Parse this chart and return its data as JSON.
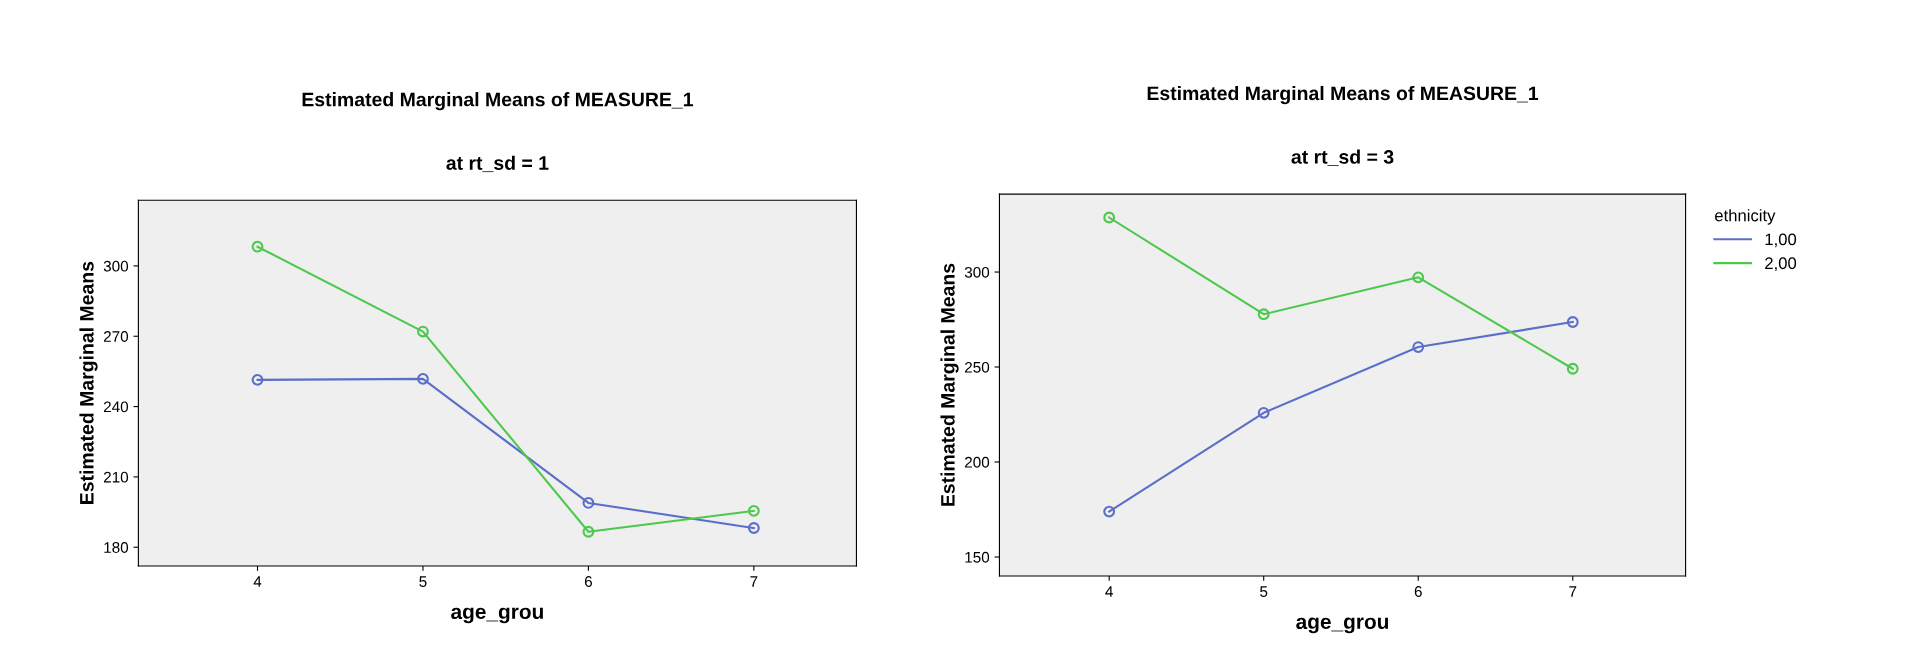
{
  "chart_data": [
    {
      "type": "line",
      "title": "Estimated Marginal Means of MEASURE_1",
      "subtitle": "at rt_sd = 1",
      "xlabel": "age_grou",
      "ylabel": "Estimated Marginal Means",
      "x": [
        4,
        5,
        6,
        7
      ],
      "xlim": [
        3.28,
        7.62
      ],
      "xticks": [
        4,
        5,
        6,
        7
      ],
      "ylim": [
        172,
        328
      ],
      "yticks": [
        180,
        210,
        240,
        270,
        300
      ],
      "marker": "circle",
      "grid": false,
      "legend": false,
      "series": [
        {
          "color": "#5b6fc9",
          "values": [
            251.4,
            251.8,
            198.9,
            188.2
          ]
        },
        {
          "color": "#4cc94c",
          "values": [
            308.2,
            272,
            186.6,
            195.5
          ]
        }
      ]
    },
    {
      "type": "line",
      "title": "Estimated Marginal Means of MEASURE_1",
      "subtitle": "at rt_sd = 3",
      "xlabel": "age_grou",
      "ylabel": "Estimated Marginal Means",
      "x": [
        4,
        5,
        6,
        7
      ],
      "xlim": [
        3.29,
        7.73
      ],
      "xticks": [
        4,
        5,
        6,
        7
      ],
      "ylim": [
        140,
        341
      ],
      "yticks": [
        150,
        200,
        250,
        300
      ],
      "marker": "circle",
      "grid": false,
      "legend": "right",
      "legend_title": "ethnicity",
      "series": [
        {
          "name": "1,00",
          "color": "#5b6fc9",
          "values": [
            173.9,
            225.9,
            260.5,
            273.7
          ]
        },
        {
          "name": "2,00",
          "color": "#4cc94c",
          "values": [
            328.7,
            277.8,
            297.2,
            249.1
          ]
        }
      ]
    }
  ]
}
